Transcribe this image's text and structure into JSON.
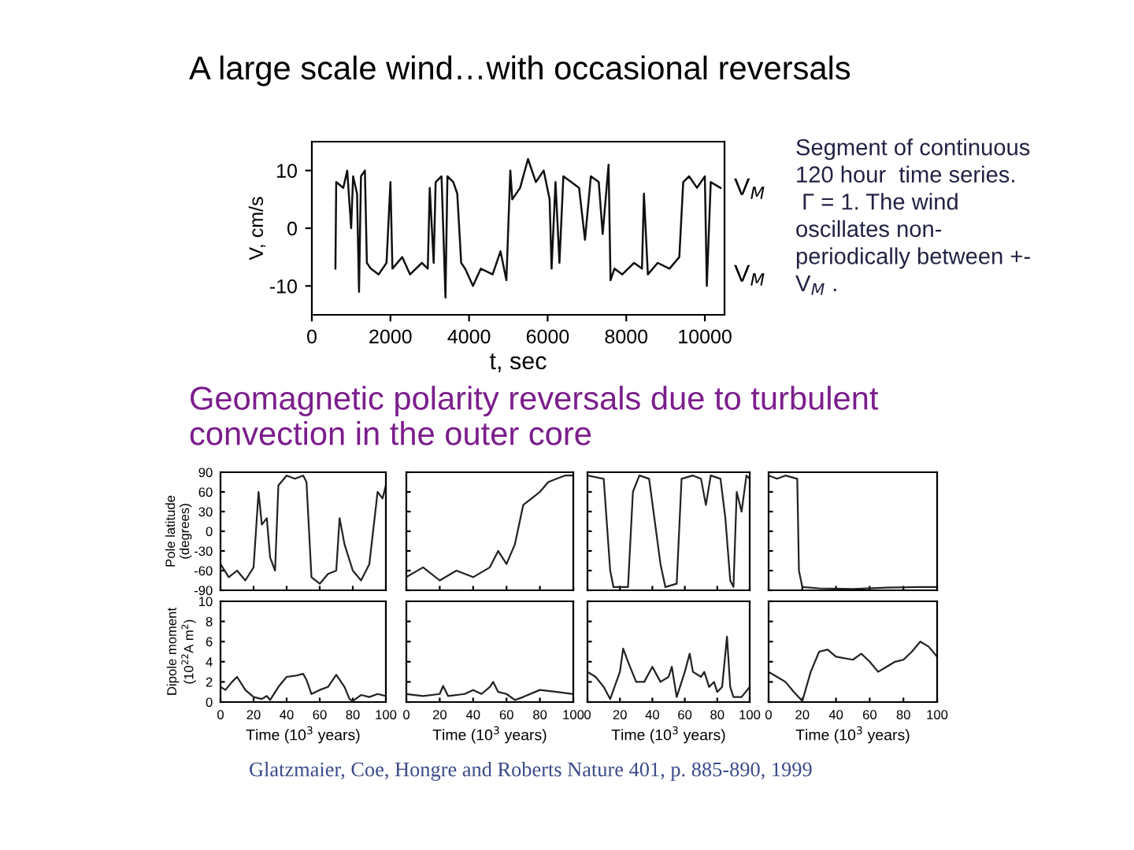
{
  "chart_data": [
    {
      "type": "line",
      "title": "A large scale wind…with occasional reversals",
      "xlabel": "t, sec",
      "ylabel": "V, cm/s",
      "xlim": [
        0,
        10500
      ],
      "ylim": [
        -15,
        15
      ],
      "xticks": [
        0,
        2000,
        4000,
        6000,
        8000,
        10000
      ],
      "yticks": [
        -10,
        0,
        10
      ],
      "annotations": [
        "V$_{M}$",
        "V$_{M}$",
        "Segment of continuous\n120 hour  time series.\n Γ = 1. The wind\noscillates non-\nperiodically between +-\nV$_{M}$ ."
      ],
      "series": [
        {
          "color": "#111111",
          "x": [
            600,
            620,
            800,
            900,
            1000,
            1050,
            1150,
            1200,
            1250,
            1350,
            1400,
            1500,
            1700,
            1900,
            2000,
            2050,
            2300,
            2500,
            2800,
            2950,
            3000,
            3100,
            3150,
            3300,
            3400,
            3450,
            3600,
            3700,
            3800,
            3900,
            4100,
            4300,
            4600,
            4800,
            4950,
            5050,
            5100,
            5300,
            5500,
            5700,
            5900,
            6050,
            6100,
            6200,
            6300,
            6400,
            6600,
            6800,
            6950,
            7100,
            7300,
            7400,
            7550,
            7600,
            7700,
            7900,
            8200,
            8400,
            8450,
            8550,
            8800,
            9100,
            9350,
            9450,
            9600,
            9800,
            10000,
            10050,
            10150,
            10400
          ],
          "values": [
            -7,
            8,
            7,
            10,
            0,
            9,
            6,
            -11,
            9,
            10,
            -6,
            -7,
            -8,
            -6,
            8,
            -7,
            -5,
            -8,
            -6,
            -7,
            7,
            -6,
            8,
            9,
            -12,
            9,
            8,
            6,
            -6,
            -7,
            -10,
            -7,
            -8,
            -4,
            -9,
            10,
            5,
            7,
            12,
            8,
            10,
            5,
            -7,
            8,
            -6,
            9,
            8,
            7,
            -2,
            9,
            8,
            -1,
            11,
            -9,
            -7,
            -8,
            -6,
            -7,
            6,
            -8,
            -6,
            -7,
            -5,
            8,
            9,
            7,
            9,
            -10,
            8,
            7
          ]
        }
      ]
    },
    {
      "type": "line",
      "title": "Geomagnetic polarity reversals due to turbulent\nconvection in the outer core",
      "ylabel": "Pole latitude\n(degrees)",
      "xlim": [
        0,
        100
      ],
      "ylim": [
        -90,
        90
      ],
      "xticks": [
        0,
        20,
        40,
        60,
        80,
        100
      ],
      "yticks": [
        -90,
        -60,
        -30,
        0,
        30,
        60,
        90
      ],
      "tick_labels": "y",
      "series": [
        {
          "color": "#222222",
          "x": [
            0,
            5,
            10,
            15,
            20,
            23,
            25,
            28,
            30,
            33,
            35,
            40,
            45,
            50,
            52,
            55,
            60,
            65,
            70,
            72,
            75,
            80,
            85,
            90,
            95,
            98,
            100
          ],
          "values": [
            -50,
            -70,
            -60,
            -75,
            -55,
            60,
            10,
            20,
            -40,
            -60,
            70,
            85,
            80,
            85,
            75,
            -70,
            -80,
            -65,
            -60,
            20,
            -20,
            -60,
            -75,
            -50,
            60,
            50,
            70
          ]
        }
      ]
    },
    {
      "type": "line",
      "xlim": [
        0,
        100
      ],
      "ylim": [
        -90,
        90
      ],
      "xticks": [
        0,
        20,
        40,
        60,
        80,
        100
      ],
      "yticks": [
        -90,
        -60,
        -30,
        0,
        30,
        60,
        90
      ],
      "tick_labels": false,
      "series": [
        {
          "color": "#222222",
          "x": [
            0,
            10,
            20,
            30,
            40,
            50,
            55,
            60,
            65,
            70,
            75,
            80,
            85,
            90,
            95,
            100
          ],
          "values": [
            -70,
            -55,
            -75,
            -60,
            -70,
            -55,
            -30,
            -50,
            -20,
            40,
            50,
            60,
            75,
            80,
            85,
            85
          ]
        }
      ]
    },
    {
      "type": "line",
      "xlim": [
        0,
        100
      ],
      "ylim": [
        -90,
        90
      ],
      "xticks": [
        0,
        20,
        40,
        60,
        80,
        100
      ],
      "yticks": [
        -90,
        -60,
        -30,
        0,
        30,
        60,
        90
      ],
      "tick_labels": false,
      "series": [
        {
          "color": "#222222",
          "x": [
            0,
            10,
            14,
            16,
            25,
            28,
            32,
            38,
            45,
            48,
            55,
            58,
            65,
            70,
            73,
            76,
            82,
            85,
            88,
            90,
            92,
            95,
            98,
            100
          ],
          "values": [
            85,
            80,
            -60,
            -85,
            -85,
            60,
            85,
            80,
            -50,
            -85,
            -80,
            80,
            85,
            80,
            40,
            85,
            80,
            20,
            -75,
            -85,
            60,
            30,
            85,
            80
          ]
        }
      ]
    },
    {
      "type": "line",
      "xlim": [
        0,
        100
      ],
      "ylim": [
        -90,
        90
      ],
      "xticks": [
        0,
        20,
        40,
        60,
        80,
        100
      ],
      "yticks": [
        -90,
        -60,
        -30,
        0,
        30,
        60,
        90
      ],
      "tick_labels": false,
      "series": [
        {
          "color": "#222222",
          "x": [
            0,
            5,
            10,
            17,
            18,
            20,
            30,
            50,
            70,
            90,
            100
          ],
          "values": [
            85,
            80,
            85,
            80,
            -60,
            -85,
            -87,
            -88,
            -86,
            -85,
            -85
          ]
        }
      ]
    },
    {
      "type": "line",
      "xlabel": "Time (10$^{3}$ years)",
      "ylabel": "Dipole moment\n(10$^{22}$A m$^{2}$)",
      "xlim": [
        0,
        100
      ],
      "ylim": [
        0,
        10
      ],
      "xticks": [
        0,
        20,
        40,
        60,
        80,
        100
      ],
      "yticks": [
        0,
        2,
        4,
        6,
        8,
        10
      ],
      "annotations": [
        "Glatzmaier, Coe, Hongre and Roberts Nature 401, p. 885-890, 1999"
      ],
      "series": [
        {
          "color": "#222222",
          "x": [
            0,
            3,
            7,
            10,
            15,
            20,
            25,
            28,
            30,
            35,
            40,
            45,
            50,
            52,
            55,
            60,
            65,
            70,
            75,
            78,
            80,
            85,
            90,
            95,
            100
          ],
          "values": [
            1.5,
            1.2,
            2,
            2.5,
            1.2,
            0.5,
            0.3,
            0.6,
            0.2,
            1.5,
            2.5,
            2.6,
            2.8,
            2.2,
            0.8,
            1.2,
            1.5,
            2.7,
            1.5,
            0.3,
            0.1,
            0.7,
            0.5,
            0.8,
            0.6
          ]
        }
      ]
    },
    {
      "type": "line",
      "xlabel": "Time (10$^{3}$ years)",
      "xlim": [
        0,
        100
      ],
      "ylim": [
        0,
        10
      ],
      "xticks": [
        0,
        20,
        40,
        60,
        80,
        100
      ],
      "yticks": [
        0,
        2,
        4,
        6,
        8,
        10
      ],
      "tick_labels": "x",
      "series": [
        {
          "color": "#222222",
          "x": [
            0,
            10,
            20,
            22,
            25,
            35,
            40,
            45,
            50,
            52,
            55,
            60,
            65,
            70,
            80,
            90,
            100
          ],
          "values": [
            0.8,
            0.6,
            0.8,
            1.6,
            0.6,
            0.8,
            1.2,
            0.8,
            1.5,
            2,
            1,
            0.8,
            0.2,
            0.5,
            1.2,
            1,
            0.8
          ]
        }
      ]
    },
    {
      "type": "line",
      "xlabel": "Time (10$^{3}$ years)",
      "xlim": [
        0,
        100
      ],
      "ylim": [
        0,
        10
      ],
      "xticks": [
        0,
        20,
        40,
        60,
        80,
        100
      ],
      "yticks": [
        0,
        2,
        4,
        6,
        8,
        10
      ],
      "tick_labels": "x",
      "series": [
        {
          "color": "#222222",
          "x": [
            0,
            5,
            10,
            14,
            20,
            22,
            25,
            30,
            35,
            40,
            45,
            50,
            52,
            55,
            60,
            63,
            65,
            70,
            72,
            75,
            78,
            80,
            83,
            86,
            88,
            90,
            95,
            100
          ],
          "values": [
            3,
            2.5,
            1.5,
            0.3,
            3,
            5.3,
            4,
            2,
            2,
            3.5,
            2,
            2.5,
            3.5,
            0.5,
            3,
            4.8,
            3,
            2.5,
            3,
            1.5,
            2,
            1,
            1.5,
            6.5,
            1.5,
            0.5,
            0.5,
            1.5
          ]
        }
      ]
    },
    {
      "type": "line",
      "xlabel": "Time (10$^{3}$ years)",
      "xlim": [
        0,
        100
      ],
      "ylim": [
        0,
        10
      ],
      "xticks": [
        0,
        20,
        40,
        60,
        80,
        100
      ],
      "yticks": [
        0,
        2,
        4,
        6,
        8,
        10
      ],
      "tick_labels": "x",
      "series": [
        {
          "color": "#222222",
          "x": [
            0,
            5,
            10,
            15,
            20,
            25,
            30,
            35,
            40,
            50,
            55,
            60,
            65,
            70,
            75,
            80,
            85,
            90,
            95,
            100
          ],
          "values": [
            3,
            2.5,
            2,
            1,
            0.1,
            3,
            5,
            5.2,
            4.5,
            4.2,
            4.8,
            4,
            3,
            3.5,
            4,
            4.2,
            5,
            6,
            5.5,
            4.5
          ]
        }
      ]
    }
  ]
}
